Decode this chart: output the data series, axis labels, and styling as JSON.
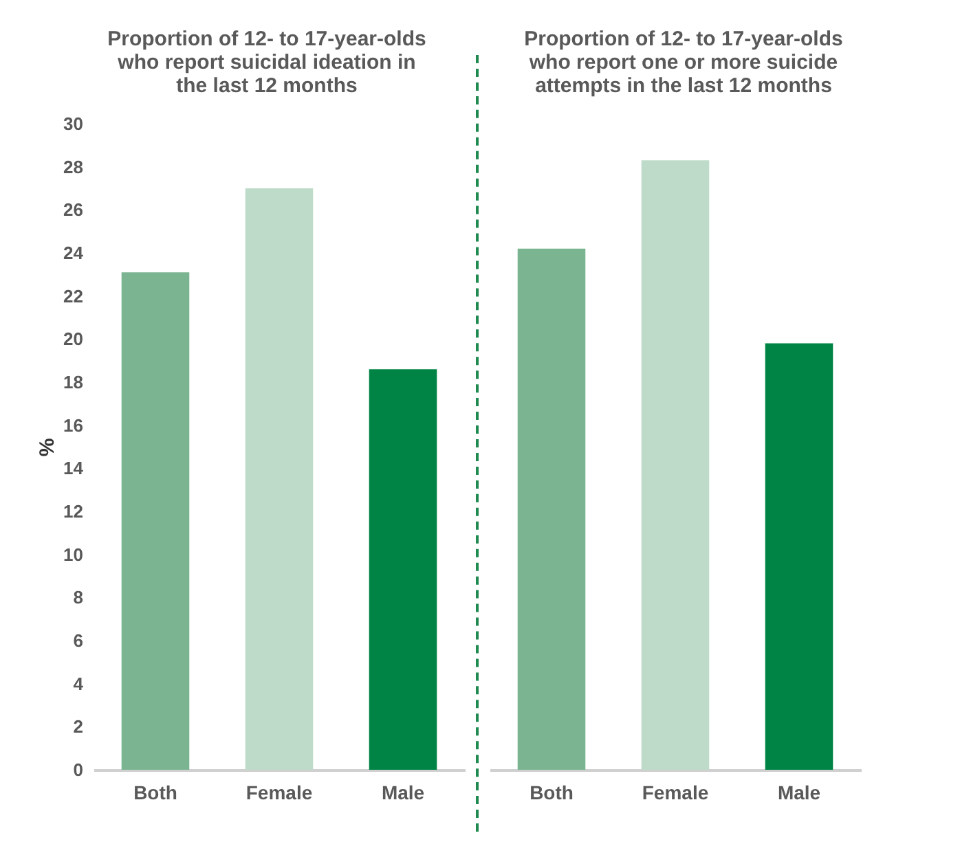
{
  "chart_data": [
    {
      "type": "bar",
      "title": "Proportion of 12- to 17-year-olds who report suicidal ideation in the last 12 months",
      "ylabel": "%",
      "categories": [
        "Both",
        "Female",
        "Male"
      ],
      "values": [
        23.1,
        27,
        18.6
      ],
      "colors": [
        "#7bb491",
        "#bedbc9",
        "#008445"
      ],
      "ylim": [
        0,
        30
      ],
      "yticks": [
        0,
        2,
        4,
        6,
        8,
        10,
        12,
        14,
        16,
        18,
        20,
        22,
        24,
        26,
        28,
        30
      ]
    },
    {
      "type": "bar",
      "title": "Proportion of 12- to 17-year-olds who report one or more suicide attempts in the last 12 months",
      "categories": [
        "Both",
        "Female",
        "Male"
      ],
      "values": [
        24.2,
        28.3,
        19.8
      ],
      "colors": [
        "#7bb491",
        "#bedbc9",
        "#008445"
      ],
      "ylim": [
        0,
        30
      ],
      "yticks": [
        0,
        2,
        4,
        6,
        8,
        10,
        12,
        14,
        16,
        18,
        20,
        22,
        24,
        26,
        28,
        30
      ],
      "tick_labels": "x"
    }
  ]
}
